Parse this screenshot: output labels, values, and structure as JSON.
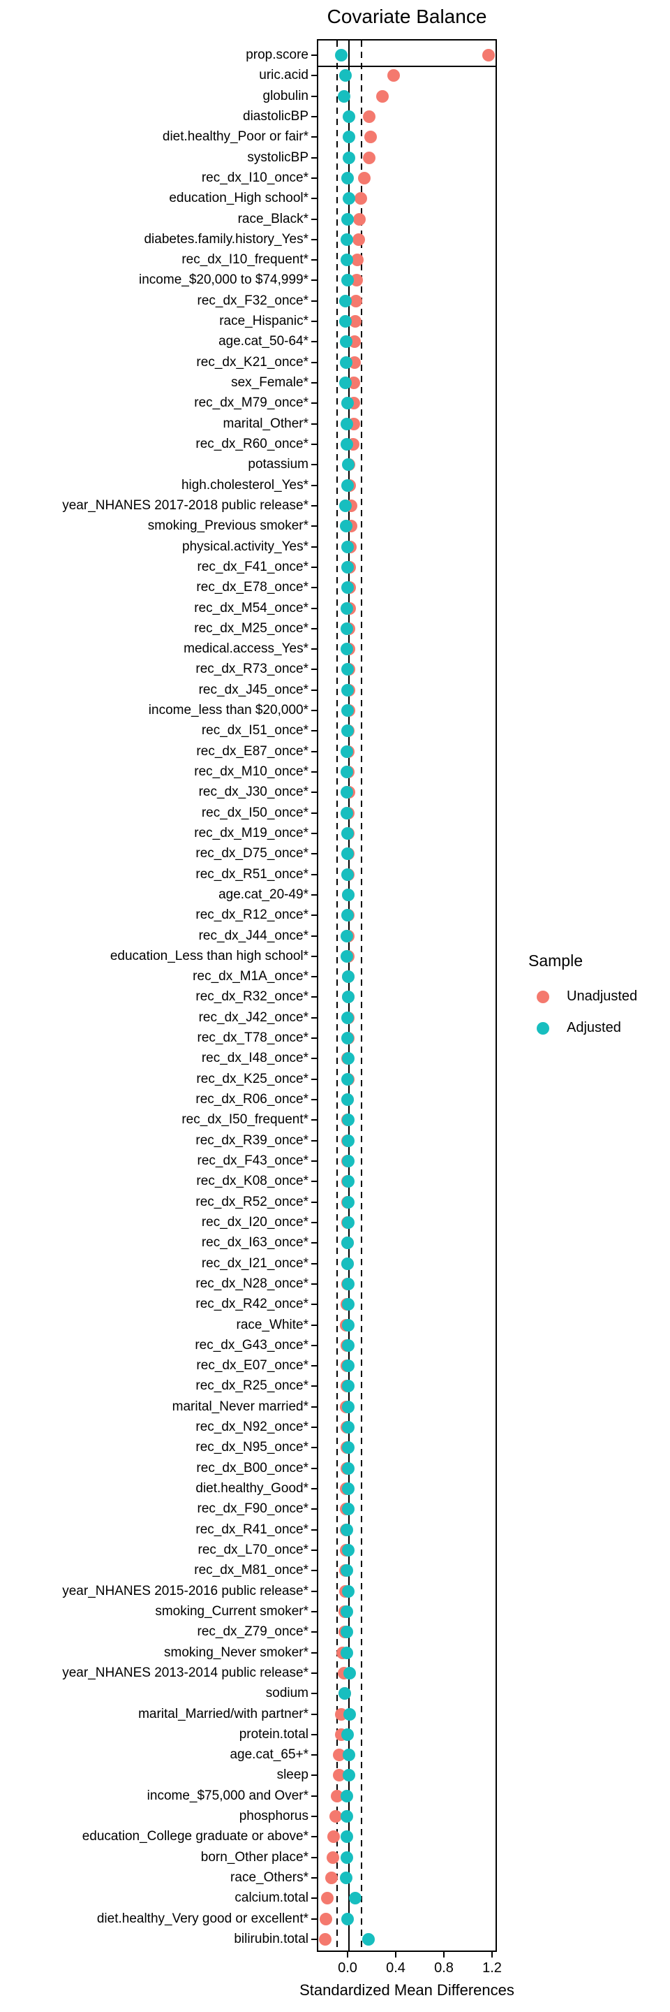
{
  "title": "Covariate Balance",
  "x_axis": {
    "title": "Standardized Mean Differences",
    "ticks": [
      {
        "value": 0.0,
        "label": "0.0"
      },
      {
        "value": 0.4,
        "label": "0.4"
      },
      {
        "value": 0.8,
        "label": "0.8"
      },
      {
        "value": 1.2,
        "label": "1.2"
      }
    ]
  },
  "legend": {
    "title": "Sample",
    "items": [
      {
        "label": "Unadjusted",
        "color": "#F4796E"
      },
      {
        "label": "Adjusted",
        "color": "#17BEBF"
      }
    ]
  },
  "colors": {
    "unadjusted": "#F4796E",
    "adjusted": "#17BEBF",
    "reference_line": "#000000"
  },
  "chart_data": {
    "type": "scatter",
    "subtype": "love-plot-covariate-balance",
    "title": "Covariate Balance",
    "xlabel": "Standardized Mean Differences",
    "xlim": [
      -0.26,
      1.25
    ],
    "x_ticks": [
      0.0,
      0.4,
      0.8,
      1.2
    ],
    "zero_line": 0.0,
    "threshold_lines": [
      -0.1,
      0.1
    ],
    "grid": false,
    "legend_position": "right",
    "series": [
      "Unadjusted",
      "Adjusted"
    ],
    "rows": [
      {
        "label": "prop.score",
        "unadjusted": 1.17,
        "adjusted": -0.05
      },
      {
        "label": "uric.acid",
        "unadjusted": 0.38,
        "adjusted": -0.02
      },
      {
        "label": "globulin",
        "unadjusted": 0.29,
        "adjusted": -0.03
      },
      {
        "label": "diastolicBP",
        "unadjusted": 0.18,
        "adjusted": 0.012
      },
      {
        "label": "diet.healthy_Poor or fair*",
        "unadjusted": 0.19,
        "adjusted": 0.012
      },
      {
        "label": "systolicBP",
        "unadjusted": 0.18,
        "adjusted": 0.01
      },
      {
        "label": "rec_dx_I10_once*",
        "unadjusted": 0.14,
        "adjusted": 0.0
      },
      {
        "label": "education_High school*",
        "unadjusted": 0.11,
        "adjusted": 0.01
      },
      {
        "label": "race_Black*",
        "unadjusted": 0.1,
        "adjusted": 0.0
      },
      {
        "label": "diabetes.family.history_Yes*",
        "unadjusted": 0.09,
        "adjusted": -0.008
      },
      {
        "label": "rec_dx_I10_frequent*",
        "unadjusted": 0.08,
        "adjusted": -0.008
      },
      {
        "label": "income_$20,000 to $74,999*",
        "unadjusted": 0.075,
        "adjusted": 0.0
      },
      {
        "label": "rec_dx_F32_once*",
        "unadjusted": 0.07,
        "adjusted": -0.018
      },
      {
        "label": "race_Hispanic*",
        "unadjusted": 0.065,
        "adjusted": -0.018
      },
      {
        "label": "age.cat_50-64*",
        "unadjusted": 0.06,
        "adjusted": -0.01
      },
      {
        "label": "rec_dx_K21_once*",
        "unadjusted": 0.06,
        "adjusted": -0.01
      },
      {
        "label": "sex_Female*",
        "unadjusted": 0.055,
        "adjusted": -0.018
      },
      {
        "label": "rec_dx_M79_once*",
        "unadjusted": 0.05,
        "adjusted": 0.0
      },
      {
        "label": "marital_Other*",
        "unadjusted": 0.05,
        "adjusted": -0.008
      },
      {
        "label": "rec_dx_R60_once*",
        "unadjusted": 0.045,
        "adjusted": -0.008
      },
      {
        "label": "potassium",
        "unadjusted": 0.01,
        "adjusted": 0.005
      },
      {
        "label": "high.cholesterol_Yes*",
        "unadjusted": 0.02,
        "adjusted": 0.0
      },
      {
        "label": "year_NHANES 2017-2018 public release*",
        "unadjusted": 0.03,
        "adjusted": -0.02
      },
      {
        "label": "smoking_Previous smoker*",
        "unadjusted": 0.03,
        "adjusted": -0.01
      },
      {
        "label": "physical.activity_Yes*",
        "unadjusted": 0.025,
        "adjusted": 0.0
      },
      {
        "label": "rec_dx_F41_once*",
        "unadjusted": 0.02,
        "adjusted": 0.0
      },
      {
        "label": "rec_dx_E78_once*",
        "unadjusted": 0.02,
        "adjusted": 0.0
      },
      {
        "label": "rec_dx_M54_once*",
        "unadjusted": 0.02,
        "adjusted": -0.005
      },
      {
        "label": "rec_dx_M25_once*",
        "unadjusted": 0.01,
        "adjusted": -0.005
      },
      {
        "label": "medical.access_Yes*",
        "unadjusted": 0.01,
        "adjusted": -0.005
      },
      {
        "label": "rec_dx_R73_once*",
        "unadjusted": 0.01,
        "adjusted": 0.0
      },
      {
        "label": "rec_dx_J45_once*",
        "unadjusted": 0.01,
        "adjusted": 0.0
      },
      {
        "label": "income_less than $20,000*",
        "unadjusted": 0.01,
        "adjusted": 0.0
      },
      {
        "label": "rec_dx_I51_once*",
        "unadjusted": 0.008,
        "adjusted": 0.0
      },
      {
        "label": "rec_dx_E87_once*",
        "unadjusted": 0.008,
        "adjusted": -0.003
      },
      {
        "label": "rec_dx_M10_once*",
        "unadjusted": 0.007,
        "adjusted": -0.003
      },
      {
        "label": "rec_dx_J30_once*",
        "unadjusted": 0.012,
        "adjusted": -0.006
      },
      {
        "label": "rec_dx_I50_once*",
        "unadjusted": 0.006,
        "adjusted": -0.003
      },
      {
        "label": "rec_dx_M19_once*",
        "unadjusted": 0.005,
        "adjusted": 0.0
      },
      {
        "label": "rec_dx_D75_once*",
        "unadjusted": 0.005,
        "adjusted": 0.0
      },
      {
        "label": "rec_dx_R51_once*",
        "unadjusted": 0.005,
        "adjusted": 0.0
      },
      {
        "label": "age.cat_20-49*",
        "unadjusted": 0.005,
        "adjusted": 0.003
      },
      {
        "label": "rec_dx_R12_once*",
        "unadjusted": 0.004,
        "adjusted": 0.0
      },
      {
        "label": "rec_dx_J44_once*",
        "unadjusted": 0.004,
        "adjusted": -0.003
      },
      {
        "label": "education_Less than high school*",
        "unadjusted": 0.004,
        "adjusted": -0.003
      },
      {
        "label": "rec_dx_M1A_once*",
        "unadjusted": 0.003,
        "adjusted": 0.003
      },
      {
        "label": "rec_dx_R32_once*",
        "unadjusted": 0.003,
        "adjusted": 0.003
      },
      {
        "label": "rec_dx_J42_once*",
        "unadjusted": 0.005,
        "adjusted": 0.0
      },
      {
        "label": "rec_dx_T78_once*",
        "unadjusted": 0.003,
        "adjusted": 0.0
      },
      {
        "label": "rec_dx_I48_once*",
        "unadjusted": 0.002,
        "adjusted": 0.003
      },
      {
        "label": "rec_dx_K25_once*",
        "unadjusted": 0.003,
        "adjusted": 0.0
      },
      {
        "label": "rec_dx_R06_once*",
        "unadjusted": 0.002,
        "adjusted": 0.0
      },
      {
        "label": "rec_dx_I50_frequent*",
        "unadjusted": 0.001,
        "adjusted": 0.003
      },
      {
        "label": "rec_dx_R39_once*",
        "unadjusted": 0.001,
        "adjusted": 0.006
      },
      {
        "label": "rec_dx_F43_once*",
        "unadjusted": 0.001,
        "adjusted": 0.003
      },
      {
        "label": "rec_dx_K08_once*",
        "unadjusted": 0.0,
        "adjusted": 0.003
      },
      {
        "label": "rec_dx_R52_once*",
        "unadjusted": 0.0,
        "adjusted": 0.003
      },
      {
        "label": "rec_dx_I20_once*",
        "unadjusted": 0.0,
        "adjusted": 0.003
      },
      {
        "label": "rec_dx_I63_once*",
        "unadjusted": -0.001,
        "adjusted": 0.0
      },
      {
        "label": "rec_dx_I21_once*",
        "unadjusted": -0.002,
        "adjusted": 0.0
      },
      {
        "label": "rec_dx_N28_once*",
        "unadjusted": -0.002,
        "adjusted": 0.006
      },
      {
        "label": "rec_dx_R42_once*",
        "unadjusted": -0.003,
        "adjusted": 0.003
      },
      {
        "label": "race_White*",
        "unadjusted": -0.012,
        "adjusted": 0.006
      },
      {
        "label": "rec_dx_G43_once*",
        "unadjusted": -0.004,
        "adjusted": 0.003
      },
      {
        "label": "rec_dx_E07_once*",
        "unadjusted": -0.008,
        "adjusted": 0.003
      },
      {
        "label": "rec_dx_R25_once*",
        "unadjusted": -0.005,
        "adjusted": 0.003
      },
      {
        "label": "marital_Never married*",
        "unadjusted": -0.012,
        "adjusted": 0.005
      },
      {
        "label": "rec_dx_N92_once*",
        "unadjusted": -0.006,
        "adjusted": 0.006
      },
      {
        "label": "rec_dx_N95_once*",
        "unadjusted": -0.007,
        "adjusted": 0.006
      },
      {
        "label": "rec_dx_B00_once*",
        "unadjusted": -0.008,
        "adjusted": 0.003
      },
      {
        "label": "diet.healthy_Good*",
        "unadjusted": -0.012,
        "adjusted": 0.003
      },
      {
        "label": "rec_dx_F90_once*",
        "unadjusted": -0.01,
        "adjusted": 0.003
      },
      {
        "label": "rec_dx_R41_once*",
        "unadjusted": -0.013,
        "adjusted": -0.003
      },
      {
        "label": "rec_dx_L70_once*",
        "unadjusted": -0.012,
        "adjusted": 0.003
      },
      {
        "label": "rec_dx_M81_once*",
        "unadjusted": -0.018,
        "adjusted": -0.003
      },
      {
        "label": "year_NHANES 2015-2016 public release*",
        "unadjusted": -0.015,
        "adjusted": 0.003
      },
      {
        "label": "smoking_Current smoker*",
        "unadjusted": -0.022,
        "adjusted": -0.003
      },
      {
        "label": "rec_dx_Z79_once*",
        "unadjusted": -0.025,
        "adjusted": -0.005
      },
      {
        "label": "smoking_Never smoker*",
        "unadjusted": -0.04,
        "adjusted": -0.006
      },
      {
        "label": "year_NHANES 2013-2014 public release*",
        "unadjusted": -0.03,
        "adjusted": 0.02
      },
      {
        "label": "sodium",
        "unadjusted": -0.022,
        "adjusted": -0.022
      },
      {
        "label": "marital_Married/with partner*",
        "unadjusted": -0.05,
        "adjusted": 0.02
      },
      {
        "label": "protein.total",
        "unadjusted": -0.05,
        "adjusted": 0.0
      },
      {
        "label": "age.cat_65+*",
        "unadjusted": -0.068,
        "adjusted": 0.013
      },
      {
        "label": "sleep",
        "unadjusted": -0.07,
        "adjusted": 0.013
      },
      {
        "label": "income_$75,000 and Over*",
        "unadjusted": -0.087,
        "adjusted": -0.006
      },
      {
        "label": "phosphorus",
        "unadjusted": -0.1,
        "adjusted": -0.006
      },
      {
        "label": "education_College graduate or above*",
        "unadjusted": -0.116,
        "adjusted": -0.006
      },
      {
        "label": "born_Other place*",
        "unadjusted": -0.122,
        "adjusted": -0.006
      },
      {
        "label": "race_Others*",
        "unadjusted": -0.135,
        "adjusted": -0.01
      },
      {
        "label": "calcium.total",
        "unadjusted": -0.17,
        "adjusted": 0.065
      },
      {
        "label": "diet.healthy_Very good or excellent*",
        "unadjusted": -0.18,
        "adjusted": 0.0
      },
      {
        "label": "bilirubin.total",
        "unadjusted": -0.185,
        "adjusted": 0.175
      }
    ]
  }
}
